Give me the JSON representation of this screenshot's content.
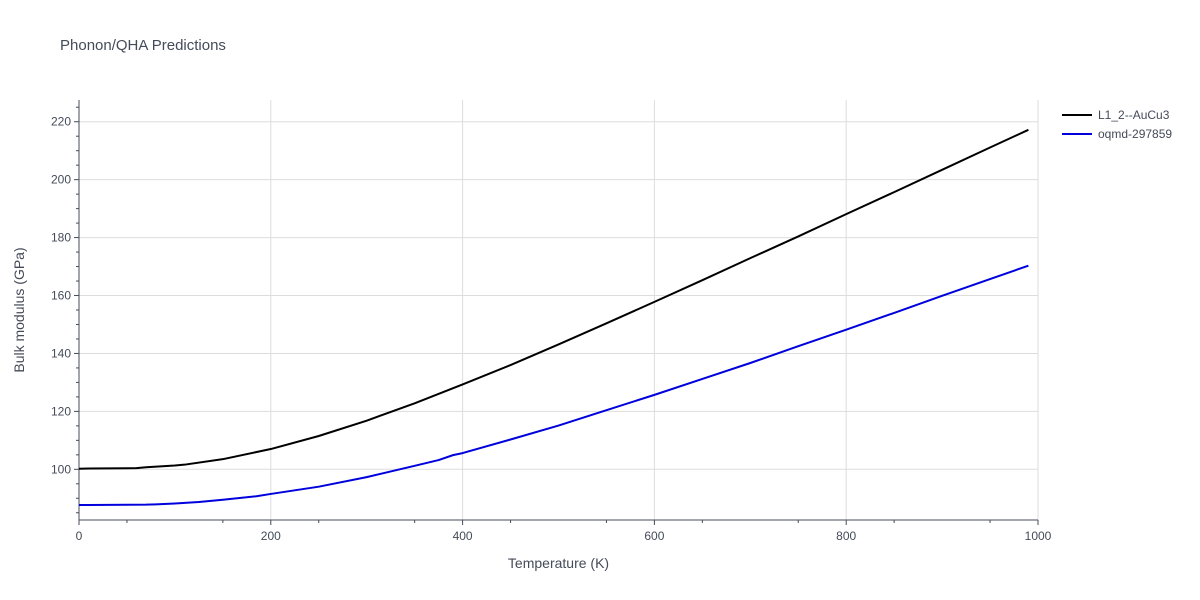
{
  "chart_data": {
    "type": "line",
    "title": "Phonon/QHA Predictions",
    "xlabel": "Temperature (K)",
    "ylabel": "Bulk modulus (GPa)",
    "xlim": [
      0,
      1000
    ],
    "ylim": [
      82.5,
      227.5
    ],
    "xticks": [
      0,
      200,
      400,
      600,
      800,
      1000
    ],
    "yticks": [
      100,
      120,
      140,
      160,
      180,
      200,
      220
    ],
    "grid": true,
    "legend_position": "top-right",
    "series": [
      {
        "name": "L1_2--AuCu3",
        "color": "#000000",
        "x": [
          0,
          10,
          60,
          70,
          100,
          110,
          150,
          200,
          250,
          300,
          350,
          400,
          450,
          500,
          550,
          600,
          650,
          700,
          750,
          800,
          850,
          900,
          950,
          990
        ],
        "y": [
          100.2,
          100.3,
          100.4,
          100.7,
          101.3,
          101.6,
          103.5,
          107.0,
          111.5,
          116.8,
          122.8,
          129.3,
          136.0,
          143.1,
          150.4,
          157.8,
          165.3,
          172.9,
          180.4,
          188.1,
          195.7,
          203.4,
          211.1,
          217.2
        ]
      },
      {
        "name": "oqmd-297859",
        "color": "#0000dd",
        "x": [
          0,
          10,
          70,
          80,
          100,
          125,
          150,
          185,
          200,
          250,
          300,
          350,
          375,
          390,
          400,
          450,
          500,
          550,
          600,
          650,
          700,
          750,
          800,
          850,
          900,
          950,
          990
        ],
        "y": [
          87.7,
          87.7,
          87.8,
          87.9,
          88.2,
          88.7,
          89.5,
          90.7,
          91.5,
          94.0,
          97.3,
          101.2,
          103.2,
          104.9,
          105.6,
          110.3,
          115.1,
          120.4,
          125.7,
          131.2,
          136.7,
          142.5,
          148.2,
          154.0,
          159.9,
          165.7,
          170.3
        ]
      }
    ]
  }
}
